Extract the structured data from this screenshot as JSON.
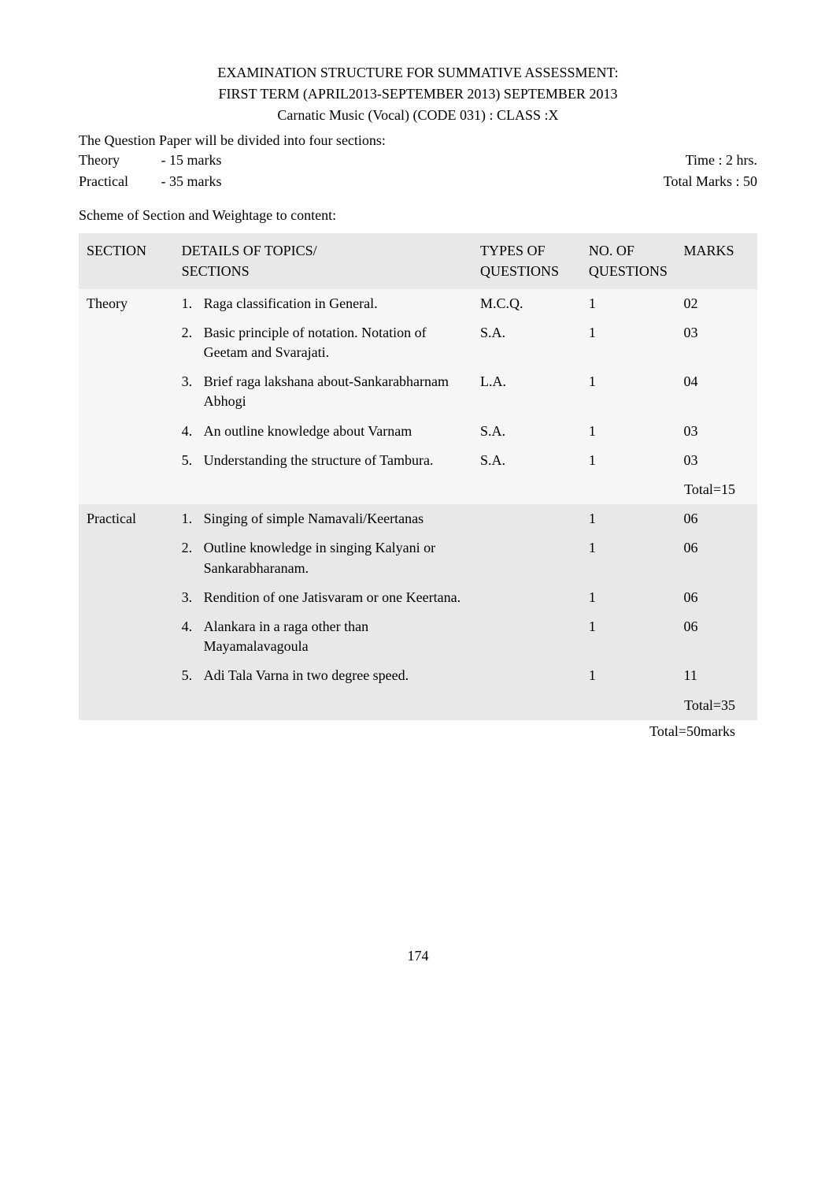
{
  "header": {
    "line1": "EXAMINATION STRUCTURE FOR SUMMATIVE ASSESSMENT:",
    "line2": "FIRST TERM      (APRIL2013-SEPTEMBER 2013)      SEPTEMBER 2013",
    "line3": "Carnatic Music (Vocal) (CODE      031) : CLASS :X"
  },
  "intro": {
    "divided": "The Question Paper will be divided into four sections:",
    "theory_label": "Theory",
    "theory_marks": "-  15  marks",
    "practical_label": "Practical",
    "practical_marks": "-  35  marks",
    "time": "Time : 2 hrs.",
    "total_marks": "Total Marks : 50"
  },
  "scheme_title": "Scheme of Section and Weightage to content:",
  "table": {
    "colors": {
      "stripe_dark": "#e8e8e8",
      "stripe_light": "#f6f6f6",
      "background": "#ffffff",
      "text": "#000000"
    },
    "columns": {
      "section_l1": "SECTION",
      "details_l1": "DETAILS OF TOPICS/",
      "details_l2": "SECTIONS",
      "types_l1": "TYPES OF",
      "types_l2": "QUESTIONS",
      "noq_l1": "NO. OF",
      "noq_l2": "QUESTIONS",
      "marks_l1": "MARKS"
    },
    "theory": {
      "label": "Theory",
      "rows": [
        {
          "num": "1.",
          "text": "Raga classification in General.",
          "type": "M.C.Q.",
          "noq": "1",
          "marks": "02"
        },
        {
          "num": "2.",
          "text": "Basic principle of notation. Notation of Geetam and Svarajati.",
          "type": "S.A.",
          "noq": "1",
          "marks": "03"
        },
        {
          "num": "3.",
          "text": "Brief raga lakshana about-Sankarabharnam Abhogi",
          "type": "L.A.",
          "noq": "1",
          "marks": "04"
        },
        {
          "num": "4.",
          "text": "An outline knowledge about Varnam",
          "type": "S.A.",
          "noq": "1",
          "marks": "03"
        },
        {
          "num": "5.",
          "text": "Understanding the structure of Tambura.",
          "type": "S.A.",
          "noq": "1",
          "marks": "03"
        }
      ],
      "total": "Total=15"
    },
    "practical": {
      "label": "Practical",
      "rows": [
        {
          "num": "1.",
          "text": "Singing of simple Namavali/Keertanas",
          "type": "",
          "noq": "1",
          "marks": "06"
        },
        {
          "num": "2.",
          "text": "Outline knowledge in singing Kalyani or Sankarabharanam.",
          "type": "",
          "noq": "1",
          "marks": "06"
        },
        {
          "num": "3.",
          "text": "Rendition of one Jatisvaram or one Keertana.",
          "type": "",
          "noq": "1",
          "marks": "06"
        },
        {
          "num": "4.",
          "text": "Alankara in a raga other than Mayamalavagoula",
          "type": "",
          "noq": "1",
          "marks": "06"
        },
        {
          "num": "5.",
          "text": "Adi Tala Varna in two degree speed.",
          "type": "",
          "noq": "1",
          "marks": "11"
        }
      ],
      "total": "Total=35"
    },
    "grand_total": "Total=50marks"
  },
  "page_number": "174"
}
